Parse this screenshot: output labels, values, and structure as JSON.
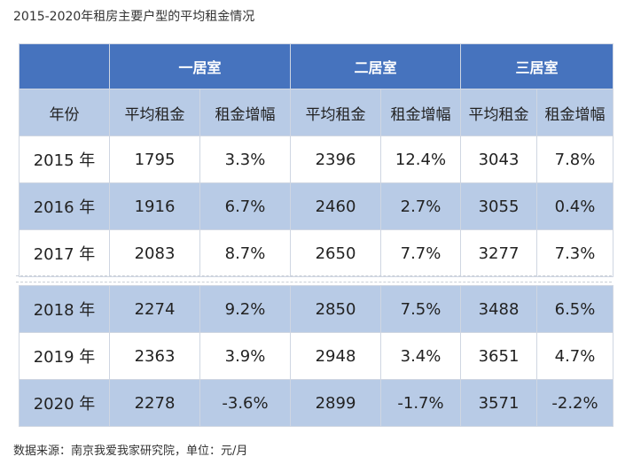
{
  "title": "2015-2020年租房主要户型的平均租金情况",
  "source": "数据来源：南京我爱我家研究院，单位：元/月",
  "header": {
    "groups": [
      "一居室",
      "二居室",
      "三居室"
    ],
    "year_label": "年份",
    "avg_rent": "平均租金",
    "growth": "租金增幅"
  },
  "rows": [
    {
      "year": "2015 年",
      "c1": "1795",
      "g1": "3.3%",
      "c2": "2396",
      "g2": "12.4%",
      "c3": "3043",
      "g3": "7.8%"
    },
    {
      "year": "2016 年",
      "c1": "1916",
      "g1": "6.7%",
      "c2": "2460",
      "g2": "2.7%",
      "c3": "3055",
      "g3": "0.4%"
    },
    {
      "year": "2017 年",
      "c1": "2083",
      "g1": "8.7%",
      "c2": "2650",
      "g2": "7.7%",
      "c3": "3277",
      "g3": "7.3%"
    },
    {
      "year": "2018 年",
      "c1": "2274",
      "g1": "9.2%",
      "c2": "2850",
      "g2": "7.5%",
      "c3": "3488",
      "g3": "6.5%"
    },
    {
      "year": "2019 年",
      "c1": "2363",
      "g1": "3.9%",
      "c2": "2948",
      "g2": "3.4%",
      "c3": "3651",
      "g3": "4.7%"
    },
    {
      "year": "2020 年",
      "c1": "2278",
      "g1": "-3.6%",
      "c2": "2899",
      "g2": "-1.7%",
      "c3": "3571",
      "g3": "-2.2%"
    }
  ],
  "colors": {
    "header_dark": "#4673be",
    "header_light": "#b8cbe6",
    "row_alt": "#b8cbe6"
  }
}
